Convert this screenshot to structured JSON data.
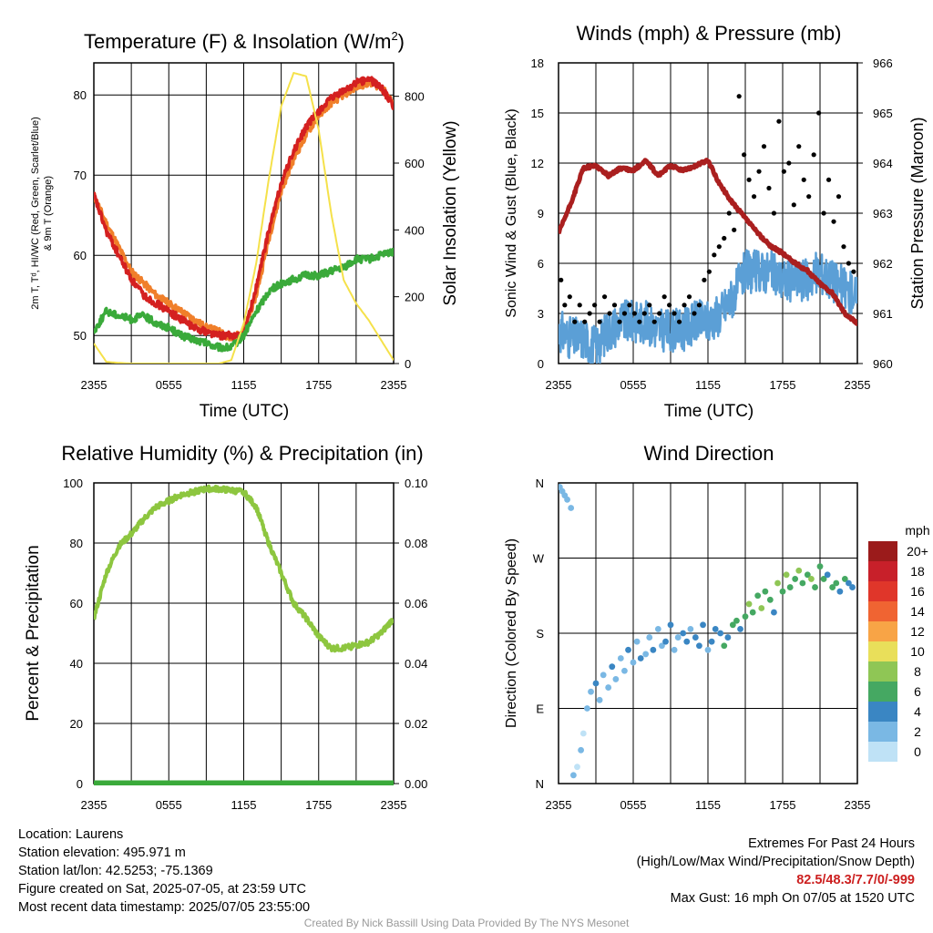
{
  "chart_data": [
    {
      "type": "line",
      "title": "Temperature (F) & Insolation (W/m²)",
      "xlabel": "Time (UTC)",
      "ylabel_left": "2m T, Td, HI/WC (Red, Green, Scarlet/Blue) & 9m T (Orange)",
      "ylabel_right": "Solar Insolation (Yellow)",
      "x_ticks": [
        "2355",
        "0555",
        "1155",
        "1755",
        "2355"
      ],
      "x_range_hours": [
        0,
        24
      ],
      "ylim_left": [
        46.5,
        84
      ],
      "yticks_left": [
        50,
        60,
        70,
        80
      ],
      "ylim_right": [
        0,
        900
      ],
      "yticks_right": [
        0,
        200,
        400,
        600,
        800
      ],
      "x_hours": [
        0,
        1,
        2,
        3,
        4,
        5,
        6,
        7,
        8,
        9,
        10,
        11,
        12,
        13,
        14,
        15,
        16,
        17,
        18,
        19,
        20,
        21,
        22,
        23,
        24
      ],
      "series": [
        {
          "color": "#f07f2a",
          "axis": "left",
          "values": [
            67.5,
            64,
            61,
            58,
            56.5,
            55,
            54,
            53,
            52,
            51,
            50.5,
            49.5,
            50.5,
            55,
            62,
            68,
            72,
            75,
            77.5,
            79,
            80,
            81,
            81.5,
            81,
            79
          ]
        },
        {
          "color": "#d42020",
          "axis": "left",
          "values": [
            67.5,
            63,
            60,
            57,
            55,
            54,
            53,
            52,
            51,
            50.5,
            50,
            50,
            50,
            56,
            63,
            69,
            73,
            76,
            78,
            79.5,
            80.5,
            81.5,
            82,
            81,
            78.5
          ]
        },
        {
          "color": "#3aaa3a",
          "axis": "left",
          "values": [
            50.5,
            53,
            52.5,
            52,
            52.5,
            51.5,
            51,
            50,
            49.5,
            49,
            48.5,
            48.5,
            50,
            53,
            55.5,
            56.5,
            57,
            57.5,
            57.5,
            58,
            58.5,
            59.5,
            59.5,
            60,
            60.5
          ]
        },
        {
          "color": "#f5e14a",
          "axis": "right",
          "values": [
            60,
            5,
            2,
            0,
            0,
            0,
            0,
            0,
            0,
            0,
            0,
            10,
            120,
            300,
            550,
            770,
            870,
            860,
            700,
            450,
            250,
            180,
            130,
            70,
            10
          ]
        }
      ]
    },
    {
      "type": "line",
      "title": "Winds (mph) & Pressure (mb)",
      "xlabel": "Time (UTC)",
      "ylabel_left": "Sonic Wind & Gust (Blue, Black)",
      "ylabel_right": "Station Pressure (Maroon)",
      "x_ticks": [
        "2355",
        "0555",
        "1155",
        "1755",
        "2355"
      ],
      "ylim_left": [
        0,
        18
      ],
      "yticks_left": [
        0,
        3,
        6,
        9,
        12,
        15,
        18
      ],
      "ylim_right": [
        960,
        966
      ],
      "yticks_right": [
        960,
        961,
        962,
        963,
        964,
        965,
        966
      ],
      "x_hours": [
        0,
        1,
        2,
        3,
        4,
        5,
        6,
        7,
        8,
        9,
        10,
        11,
        12,
        13,
        14,
        15,
        16,
        17,
        18,
        19,
        20,
        21,
        22,
        23,
        24
      ],
      "series": [
        {
          "color": "#5b9fd6",
          "axis": "left",
          "values": [
            2,
            1.5,
            1.5,
            1,
            2,
            2.5,
            2.5,
            2.5,
            2,
            2,
            2,
            2.5,
            2.5,
            3,
            4,
            5.5,
            5.5,
            5.5,
            5,
            5,
            5,
            5.5,
            5,
            4.5,
            4
          ]
        },
        {
          "color": "#aa1f1f",
          "axis": "right",
          "values": [
            962.6,
            963.2,
            963.9,
            963.95,
            963.75,
            963.9,
            963.85,
            964.05,
            963.75,
            963.95,
            963.85,
            963.95,
            964.05,
            963.55,
            963.2,
            962.9,
            962.6,
            962.35,
            962.2,
            962.0,
            961.85,
            961.6,
            961.4,
            961.0,
            960.8
          ]
        }
      ],
      "gust_points_hours": [
        0.2,
        0.5,
        0.9,
        1.3,
        1.7,
        2.1,
        2.5,
        2.9,
        3.3,
        3.7,
        4.1,
        4.5,
        4.9,
        5.3,
        5.7,
        6.1,
        6.5,
        6.9,
        7.3,
        7.7,
        8.1,
        8.5,
        8.9,
        9.3,
        9.7,
        10.1,
        10.5,
        10.9,
        11.3,
        11.7,
        12.1,
        12.5,
        12.9,
        13.3,
        13.7,
        14.1,
        14.5,
        14.9,
        15.3,
        15.7,
        16.1,
        16.5,
        16.9,
        17.3,
        17.7,
        18.1,
        18.5,
        18.9,
        19.3,
        19.7,
        20.1,
        20.5,
        20.9,
        21.3,
        21.7,
        22.1,
        22.5,
        22.9,
        23.3,
        23.7
      ],
      "gust_points_mph": [
        5,
        3.5,
        4,
        2.5,
        3.5,
        2.5,
        3,
        3.5,
        2.5,
        4,
        3,
        3.5,
        2.5,
        3,
        3.5,
        3,
        2.5,
        3,
        3.5,
        2.5,
        3,
        4,
        3.5,
        3,
        2.5,
        3.5,
        4,
        3,
        3.5,
        5,
        5.5,
        6.5,
        7,
        7.5,
        9,
        8,
        16,
        12.5,
        11,
        10,
        11.5,
        13,
        10.5,
        9,
        14.5,
        11.5,
        12,
        9.5,
        13,
        11,
        10,
        12.5,
        15,
        9,
        11,
        8.5,
        10,
        7,
        6,
        5.5
      ]
    },
    {
      "type": "line",
      "title": "Relative Humidity (%) & Precipitation (in)",
      "ylabel_left": "Percent & Precipitation",
      "x_ticks": [
        "2355",
        "0555",
        "1155",
        "1755",
        "2355"
      ],
      "ylim_left": [
        0,
        100
      ],
      "yticks_left": [
        0,
        20,
        40,
        60,
        80,
        100
      ],
      "ylim_right": [
        0,
        0.1
      ],
      "yticks_right": [
        "0.00",
        "0.02",
        "0.04",
        "0.06",
        "0.08",
        "0.10"
      ],
      "x_hours": [
        0,
        1,
        2,
        3,
        4,
        5,
        6,
        7,
        8,
        9,
        10,
        11,
        12,
        13,
        14,
        15,
        16,
        17,
        18,
        19,
        20,
        21,
        22,
        23,
        24
      ],
      "series": [
        {
          "color": "#8dc63f",
          "axis": "left",
          "values": [
            55,
            70,
            79,
            83,
            88,
            92,
            94,
            96,
            97,
            98,
            98,
            97.5,
            97,
            92,
            80,
            70,
            60,
            55,
            49,
            45,
            45,
            46,
            47,
            50,
            55
          ]
        },
        {
          "color": "#3aaa3a",
          "axis": "right",
          "values": [
            0,
            0,
            0,
            0,
            0,
            0,
            0,
            0,
            0,
            0,
            0,
            0,
            0,
            0,
            0,
            0,
            0,
            0,
            0,
            0,
            0,
            0,
            0,
            0,
            0
          ]
        }
      ]
    },
    {
      "type": "scatter",
      "title": "Wind Direction",
      "ylabel": "Direction (Colored By Speed)",
      "x_ticks": [
        "2355",
        "0555",
        "1155",
        "1755",
        "2355"
      ],
      "y_ticks": [
        "N",
        "E",
        "S",
        "W",
        "N"
      ],
      "ylim_degrees": [
        0,
        360
      ],
      "legend_title": "mph",
      "legend_labels": [
        "20+",
        "18",
        "16",
        "14",
        "12",
        "10",
        "8",
        "6",
        "4",
        "2",
        "0"
      ],
      "legend_colors": [
        "#9b1b1b",
        "#c8202a",
        "#e0362a",
        "#f06432",
        "#f8a446",
        "#e9df5a",
        "#8fc655",
        "#45a862",
        "#3a86c3",
        "#7ab8e4",
        "#bfe2f6"
      ],
      "hours": [
        0.1,
        0.3,
        0.5,
        0.7,
        1.0,
        1.2,
        1.5,
        1.8,
        2.0,
        2.3,
        2.6,
        3.0,
        3.3,
        3.6,
        4.0,
        4.3,
        4.6,
        5.0,
        5.3,
        5.6,
        6.0,
        6.3,
        6.6,
        7.0,
        7.3,
        7.6,
        8.0,
        8.3,
        8.6,
        9.0,
        9.3,
        9.6,
        10.0,
        10.3,
        10.6,
        11.0,
        11.3,
        11.6,
        12.0,
        12.3,
        12.6,
        13.0,
        13.3,
        13.6,
        14.0,
        14.3,
        14.6,
        15.0,
        15.3,
        15.6,
        16.0,
        16.3,
        16.6,
        17.0,
        17.3,
        17.6,
        18.0,
        18.3,
        18.6,
        19.0,
        19.3,
        19.6,
        20.0,
        20.3,
        20.6,
        21.0,
        21.3,
        21.6,
        22.0,
        22.3,
        22.6,
        23.0,
        23.3,
        23.6
      ],
      "directions_deg": [
        355,
        350,
        345,
        340,
        330,
        10,
        20,
        40,
        60,
        90,
        110,
        120,
        100,
        130,
        115,
        140,
        125,
        150,
        135,
        160,
        145,
        170,
        150,
        155,
        175,
        160,
        185,
        165,
        170,
        190,
        160,
        175,
        180,
        170,
        185,
        175,
        165,
        190,
        160,
        170,
        185,
        180,
        165,
        175,
        190,
        195,
        185,
        200,
        215,
        205,
        225,
        210,
        230,
        220,
        205,
        240,
        230,
        250,
        235,
        245,
        255,
        240,
        250,
        245,
        235,
        260,
        245,
        250,
        235,
        240,
        230,
        245,
        240,
        235
      ],
      "speeds_mph": [
        1,
        2,
        1,
        2,
        1,
        1,
        0,
        1,
        0,
        2,
        1,
        3,
        2,
        1,
        2,
        3,
        2,
        1,
        2,
        3,
        1,
        2,
        3,
        1,
        2,
        3,
        1,
        2,
        4,
        3,
        1,
        2,
        4,
        3,
        2,
        3,
        4,
        3,
        2,
        4,
        3,
        4,
        5,
        4,
        5,
        6,
        4,
        6,
        7,
        5,
        6,
        7,
        6,
        5,
        4,
        7,
        6,
        7,
        5,
        6,
        7,
        5,
        6,
        7,
        5,
        6,
        5,
        4,
        5,
        6,
        4,
        5,
        4,
        3
      ]
    }
  ],
  "footer": {
    "location": "Location: Laurens",
    "elevation": "Station elevation: 495.971 m",
    "latlon": "Station lat/lon: 42.5253; -75.1369",
    "created": "Figure created on Sat, 2025-07-05, at 23:59 UTC",
    "recent": "Most recent data timestamp: 2025/07/05 23:55:00",
    "extremes_title": "Extremes For Past 24 Hours",
    "extremes_sub": "(High/Low/Max Wind/Precipitation/Snow Depth)",
    "extremes_values": "82.5/48.3/7.7/0/-999",
    "max_gust": "Max Gust: 16 mph On 07/05 at 1520 UTC",
    "credit": "Created By Nick Bassill Using Data Provided By The NYS Mesonet"
  }
}
